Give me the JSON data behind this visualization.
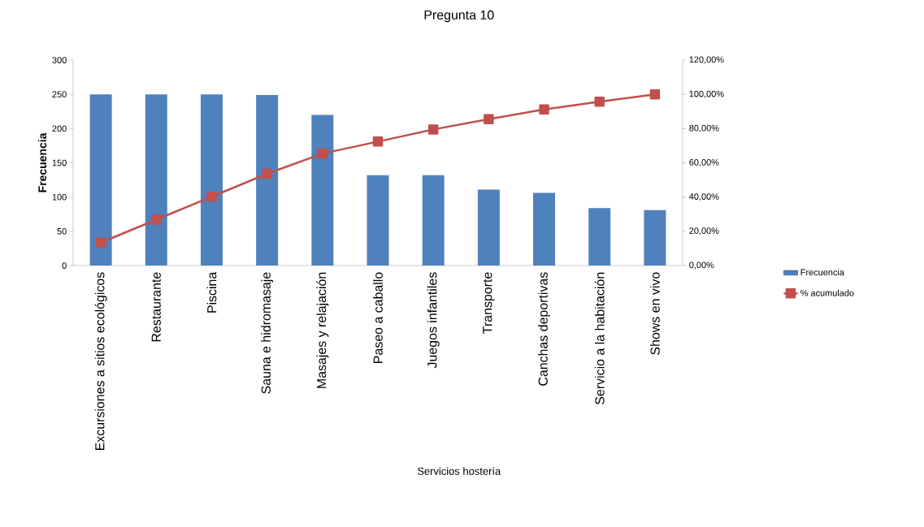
{
  "chart_data": {
    "type": "bar",
    "title": "Pregunta 10",
    "xlabel": "Servicios hostería",
    "ylabel": "Frecuencia",
    "categories": [
      "Excursiones a sitios ecológicos",
      "Restaurante",
      "Piscina",
      "Sauna e hidromasaje",
      "Masajes y relajación",
      "Paseo a caballo",
      "Juegos infantiles",
      "Transporte",
      "Canchas deportivas",
      "Servicio a la habitación",
      "Shows en vivo"
    ],
    "series": [
      {
        "name": "Frecuencia",
        "color": "#4f81bd",
        "values": [
          250,
          250,
          250,
          249,
          220,
          132,
          132,
          111,
          106,
          84,
          81
        ]
      },
      {
        "name": "% acumulado",
        "type": "line",
        "axis": "y2",
        "color": "#c0504d",
        "values": [
          13.4,
          26.8,
          40.2,
          53.6,
          65.4,
          72.4,
          79.5,
          85.5,
          91.2,
          95.7,
          100
        ]
      }
    ],
    "marker": "square",
    "legend": "right",
    "ylim": [
      0,
      300
    ],
    "yticks": [
      0,
      50,
      100,
      150,
      200,
      250,
      300
    ],
    "y2lim": [
      0,
      120
    ],
    "y2ticks": [
      {
        "value": 0,
        "label": "0,00%"
      },
      {
        "value": 20,
        "label": "20,00%"
      },
      {
        "value": 40,
        "label": "40,00%"
      },
      {
        "value": 60,
        "label": "60,00%"
      },
      {
        "value": 80,
        "label": "80,00%"
      },
      {
        "value": 100,
        "label": "100,00%"
      },
      {
        "value": 120,
        "label": "120,00%"
      }
    ]
  }
}
